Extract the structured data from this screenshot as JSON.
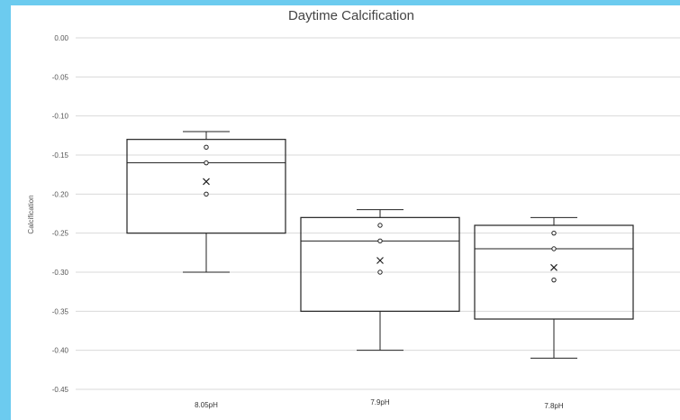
{
  "chart_data": {
    "type": "box",
    "title": "Daytime Calcification",
    "ylabel": "Calcification",
    "xlabel": "",
    "ylim": [
      -0.45,
      0.0
    ],
    "ytick_labels": [
      "0.00",
      "-0.05",
      "-0.10",
      "-0.15",
      "-0.20",
      "-0.25",
      "-0.30",
      "-0.35",
      "-0.40",
      "-0.45"
    ],
    "ytick_values": [
      0.0,
      -0.05,
      -0.1,
      -0.15,
      -0.2,
      -0.25,
      -0.3,
      -0.35,
      -0.4,
      -0.45
    ],
    "grid": true,
    "categories": [
      "8.05pH",
      "7.9pH",
      "7.8pH"
    ],
    "boxes": [
      {
        "category": "8.05pH",
        "whisker_max": -0.12,
        "q3": -0.13,
        "median": -0.16,
        "q1": -0.25,
        "whisker_min": -0.3,
        "mean": -0.184,
        "points": [
          -0.14,
          -0.16,
          -0.2
        ]
      },
      {
        "category": "7.9pH",
        "whisker_max": -0.22,
        "q3": -0.23,
        "median": -0.26,
        "q1": -0.35,
        "whisker_min": -0.4,
        "mean": -0.285,
        "points": [
          -0.24,
          -0.26,
          -0.3
        ]
      },
      {
        "category": "7.8pH",
        "whisker_max": -0.23,
        "q3": -0.24,
        "median": -0.27,
        "q1": -0.36,
        "whisker_min": -0.41,
        "mean": -0.294,
        "points": [
          -0.25,
          -0.27,
          -0.31
        ]
      }
    ],
    "colors": {
      "box_stroke": "#222222",
      "grid": "#d9d9d9",
      "frame_accent": "#6ccbef"
    }
  }
}
